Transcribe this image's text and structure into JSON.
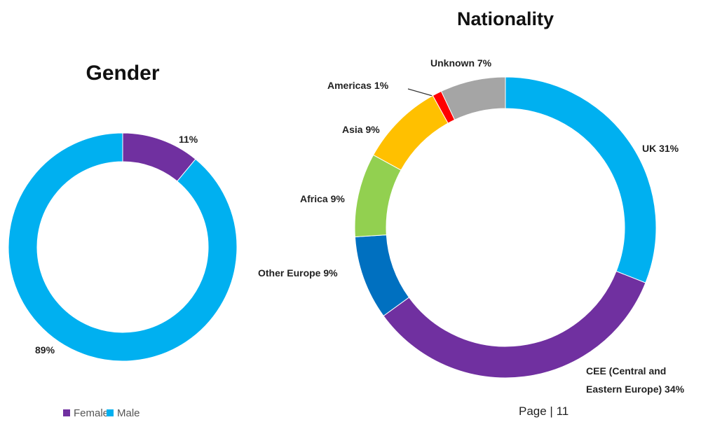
{
  "charts": [
    {
      "chart_data": {
        "type": "donut",
        "title": "Gender",
        "categories": [
          "Female",
          "Male"
        ],
        "values": [
          11,
          89
        ],
        "value_labels": [
          "11%",
          "89%"
        ],
        "colors": [
          "#7030a0",
          "#00b0f0"
        ],
        "legend": "bottom-left"
      }
    },
    {
      "chart_data": {
        "type": "donut",
        "title": "Nationality",
        "values": [
          31,
          34,
          9,
          9,
          9,
          1,
          7
        ],
        "value_labels": [
          "UK 31%",
          "CEE (Central and Eastern Europe) 34%",
          "Other Europe 9%",
          "Africa 9%",
          "Asia 9%",
          "Americas 1%",
          "Unknown 7%"
        ],
        "colors": [
          "#00b0f0",
          "#7030a0",
          "#0070c0",
          "#92d050",
          "#ffc000",
          "#ff0000",
          "#a5a5a5"
        ]
      }
    }
  ],
  "footer": "Page | 11"
}
